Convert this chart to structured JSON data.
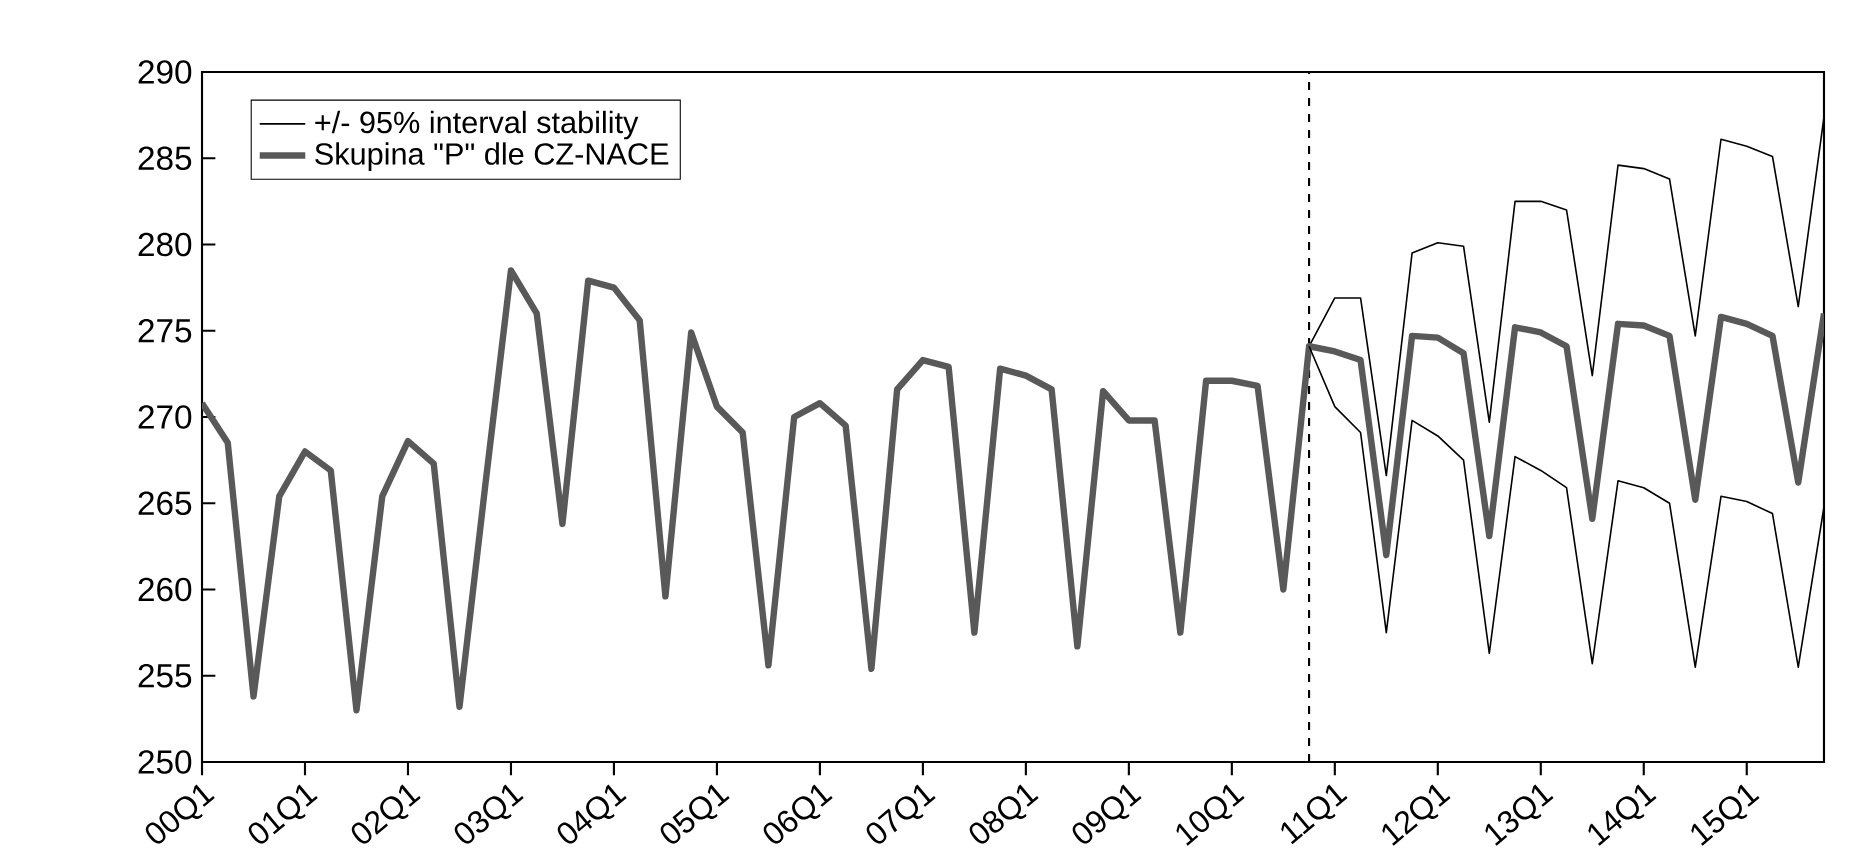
{
  "chart_data": {
    "type": "line",
    "categories": [
      "00Q1",
      null,
      null,
      null,
      "01Q1",
      null,
      null,
      null,
      "02Q1",
      null,
      null,
      null,
      "03Q1",
      null,
      null,
      null,
      "04Q1",
      null,
      null,
      null,
      "05Q1",
      null,
      null,
      null,
      "06Q1",
      null,
      null,
      null,
      "07Q1",
      null,
      null,
      null,
      "08Q1",
      null,
      null,
      null,
      "09Q1",
      null,
      null,
      null,
      "10Q1",
      null,
      null,
      null,
      "11Q1",
      null,
      null,
      null,
      "12Q1",
      null,
      null,
      null,
      "13Q1",
      null,
      null,
      null,
      "14Q1",
      null,
      null,
      null,
      "15Q1",
      null,
      null,
      null
    ],
    "ylim": [
      250,
      290
    ],
    "yticks": [
      250,
      255,
      260,
      265,
      270,
      275,
      280,
      285,
      290
    ],
    "legend": "top left",
    "series": [
      {
        "name": "+/- 95% interval stability",
        "color": "#000000",
        "values": [
          null,
          null,
          null,
          null,
          null,
          null,
          null,
          null,
          null,
          null,
          null,
          null,
          null,
          null,
          null,
          null,
          null,
          null,
          null,
          null,
          null,
          null,
          null,
          null,
          null,
          null,
          null,
          null,
          null,
          null,
          null,
          null,
          null,
          null,
          null,
          null,
          null,
          null,
          null,
          null,
          null,
          null,
          null,
          274.1,
          276.9,
          276.9,
          266.6,
          279.5,
          280.1,
          279.9,
          269.7,
          282.5,
          282.5,
          282.0,
          272.4,
          284.6,
          284.4,
          283.8,
          274.7,
          286.1,
          285.7,
          285.1,
          276.4,
          287.4
        ]
      },
      {
        "color": "#000000",
        "values": [
          null,
          null,
          null,
          null,
          null,
          null,
          null,
          null,
          null,
          null,
          null,
          null,
          null,
          null,
          null,
          null,
          null,
          null,
          null,
          null,
          null,
          null,
          null,
          null,
          null,
          null,
          null,
          null,
          null,
          null,
          null,
          null,
          null,
          null,
          null,
          null,
          null,
          null,
          null,
          null,
          null,
          null,
          null,
          274.1,
          270.6,
          269.1,
          257.5,
          269.8,
          268.9,
          267.5,
          256.3,
          267.7,
          266.9,
          265.9,
          255.7,
          266.3,
          265.9,
          265.0,
          255.5,
          265.4,
          265.1,
          264.4,
          255.5,
          264.8
        ]
      },
      {
        "name": "Skupina \"P\" dle CZ-NACE",
        "color": "#595959",
        "values": [
          270.8,
          268.5,
          253.8,
          265.4,
          268.0,
          266.9,
          253.0,
          265.4,
          268.6,
          267.3,
          253.2,
          266.0,
          278.5,
          276.0,
          263.8,
          277.9,
          277.5,
          275.6,
          259.6,
          274.9,
          270.6,
          269.1,
          255.6,
          270.0,
          270.8,
          269.5,
          255.4,
          271.6,
          273.3,
          272.9,
          257.5,
          272.8,
          272.4,
          271.6,
          256.7,
          271.5,
          269.8,
          269.8,
          257.5,
          272.1,
          272.1,
          271.8,
          260.0,
          274.1,
          273.8,
          273.3,
          262.0,
          274.7,
          274.6,
          273.7,
          263.1,
          275.2,
          274.9,
          274.1,
          264.1,
          275.4,
          275.3,
          274.7,
          265.2,
          275.8,
          275.4,
          274.7,
          266.2,
          276.0
        ]
      }
    ]
  }
}
